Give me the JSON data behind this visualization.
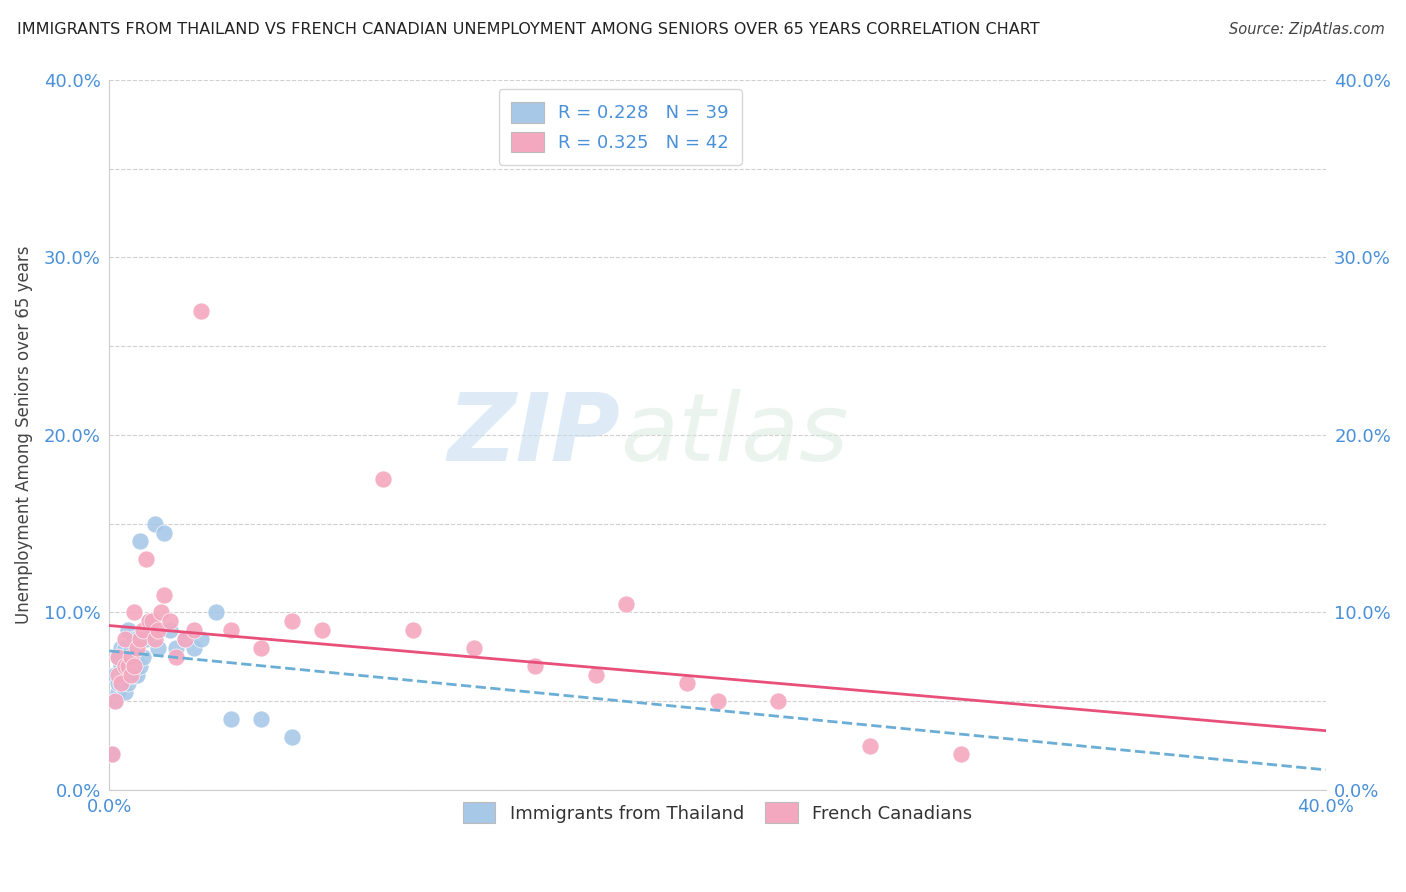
{
  "title": "IMMIGRANTS FROM THAILAND VS FRENCH CANADIAN UNEMPLOYMENT AMONG SENIORS OVER 65 YEARS CORRELATION CHART",
  "source": "Source: ZipAtlas.com",
  "ylabel": "Unemployment Among Seniors over 65 years",
  "blue_color": "#a8c8e8",
  "pink_color": "#f4a8c0",
  "blue_line_color": "#6aaed6",
  "pink_line_color": "#e8507a",
  "legend_R1": "R = 0.228",
  "legend_N1": "N = 39",
  "legend_R2": "R = 0.325",
  "legend_N2": "N = 42",
  "watermark_zip": "ZIP",
  "watermark_atlas": "atlas",
  "xlim": [
    0.0,
    0.4
  ],
  "ylim": [
    0.0,
    0.4
  ],
  "blue_scatter_x": [
    0.001,
    0.002,
    0.002,
    0.003,
    0.003,
    0.003,
    0.004,
    0.004,
    0.004,
    0.005,
    0.005,
    0.005,
    0.006,
    0.006,
    0.006,
    0.007,
    0.007,
    0.008,
    0.008,
    0.009,
    0.009,
    0.01,
    0.01,
    0.011,
    0.012,
    0.013,
    0.014,
    0.015,
    0.016,
    0.018,
    0.02,
    0.022,
    0.025,
    0.028,
    0.03,
    0.035,
    0.04,
    0.05,
    0.06
  ],
  "blue_scatter_y": [
    0.02,
    0.05,
    0.065,
    0.055,
    0.06,
    0.075,
    0.06,
    0.07,
    0.08,
    0.055,
    0.065,
    0.08,
    0.06,
    0.07,
    0.09,
    0.065,
    0.08,
    0.065,
    0.085,
    0.065,
    0.085,
    0.07,
    0.14,
    0.075,
    0.085,
    0.095,
    0.095,
    0.15,
    0.08,
    0.145,
    0.09,
    0.08,
    0.085,
    0.08,
    0.085,
    0.1,
    0.04,
    0.04,
    0.03
  ],
  "pink_scatter_x": [
    0.001,
    0.002,
    0.003,
    0.003,
    0.004,
    0.005,
    0.005,
    0.006,
    0.007,
    0.007,
    0.008,
    0.008,
    0.009,
    0.01,
    0.011,
    0.012,
    0.013,
    0.014,
    0.015,
    0.016,
    0.017,
    0.018,
    0.02,
    0.022,
    0.025,
    0.028,
    0.03,
    0.04,
    0.05,
    0.06,
    0.07,
    0.09,
    0.1,
    0.12,
    0.14,
    0.16,
    0.17,
    0.19,
    0.2,
    0.22,
    0.25,
    0.28
  ],
  "pink_scatter_y": [
    0.02,
    0.05,
    0.065,
    0.075,
    0.06,
    0.07,
    0.085,
    0.07,
    0.065,
    0.075,
    0.07,
    0.1,
    0.08,
    0.085,
    0.09,
    0.13,
    0.095,
    0.095,
    0.085,
    0.09,
    0.1,
    0.11,
    0.095,
    0.075,
    0.085,
    0.09,
    0.27,
    0.09,
    0.08,
    0.095,
    0.09,
    0.175,
    0.09,
    0.08,
    0.07,
    0.065,
    0.105,
    0.06,
    0.05,
    0.05,
    0.025,
    0.02
  ]
}
